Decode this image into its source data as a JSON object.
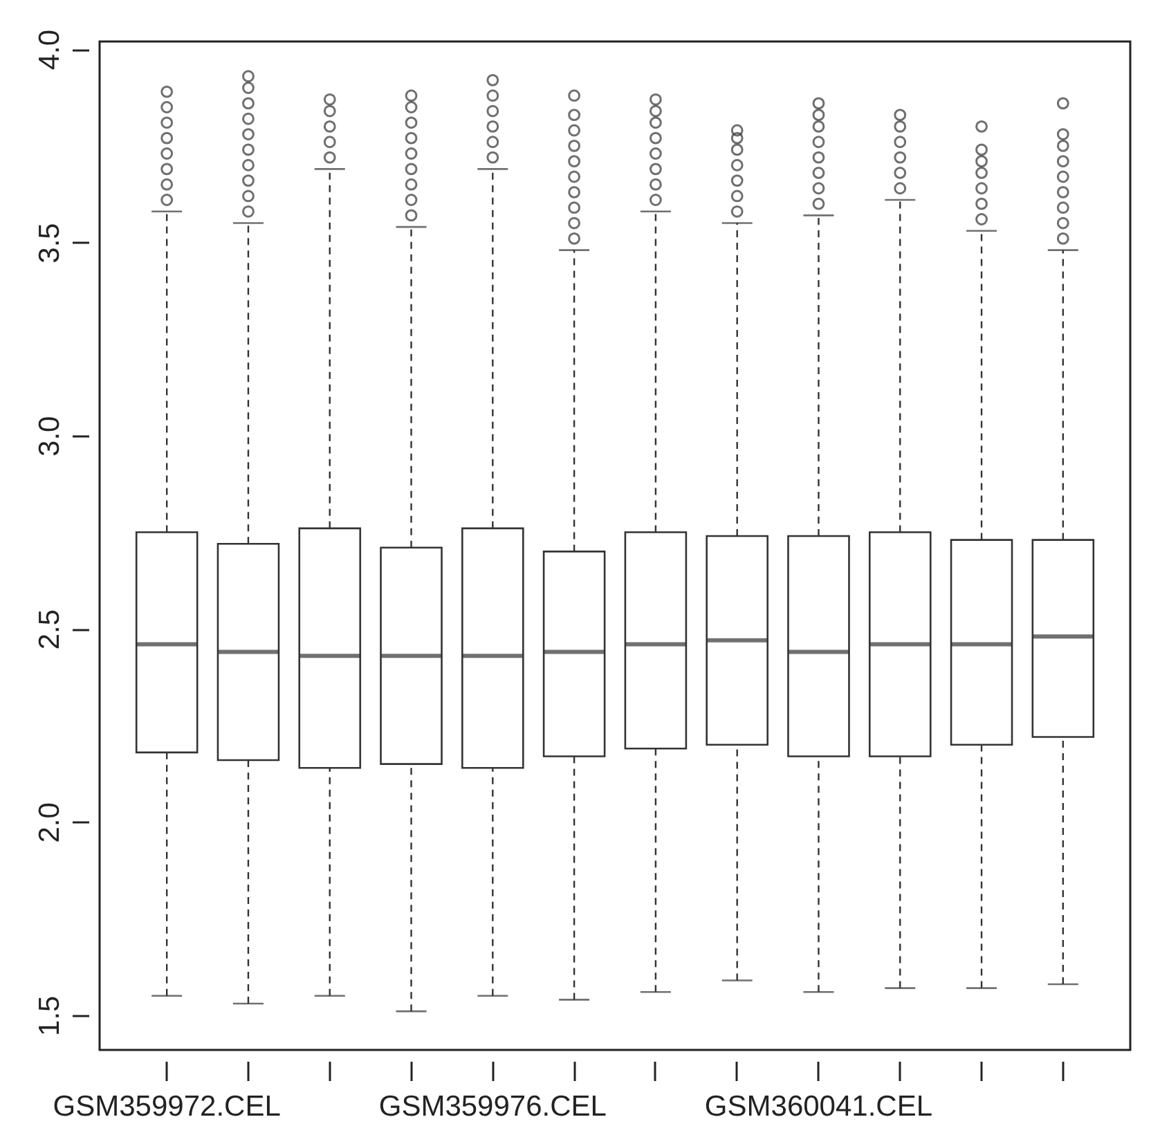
{
  "chart_data": {
    "type": "box",
    "categories": [
      "GSM359972.CEL",
      null,
      null,
      null,
      "GSM359976.CEL",
      null,
      null,
      null,
      "GSM360041.CEL",
      null,
      null,
      null
    ],
    "color": "#333333",
    "ylim": [
      1.41,
      4.02
    ],
    "yticks": [
      {
        "value": 1.5,
        "label": "1.5"
      },
      {
        "value": 2.0,
        "label": "2.0"
      },
      {
        "value": 2.5,
        "label": "2.5"
      },
      {
        "value": 3.0,
        "label": "3.0"
      },
      {
        "value": 3.5,
        "label": "3.5"
      },
      {
        "value": 4.0,
        "label": "4.0"
      }
    ],
    "boxes": [
      {
        "low": 1.55,
        "q1": 2.18,
        "median": 2.46,
        "q3": 2.75,
        "high": 3.58,
        "outliers": [
          3.61,
          3.65,
          3.69,
          3.73,
          3.77,
          3.81,
          3.85,
          3.89
        ]
      },
      {
        "low": 1.53,
        "q1": 2.16,
        "median": 2.44,
        "q3": 2.72,
        "high": 3.55,
        "outliers": [
          3.58,
          3.62,
          3.66,
          3.7,
          3.74,
          3.78,
          3.82,
          3.86,
          3.9,
          3.93
        ]
      },
      {
        "low": 1.55,
        "q1": 2.14,
        "median": 2.43,
        "q3": 2.76,
        "high": 3.69,
        "outliers": [
          3.72,
          3.76,
          3.8,
          3.84,
          3.87
        ]
      },
      {
        "low": 1.51,
        "q1": 2.15,
        "median": 2.43,
        "q3": 2.71,
        "high": 3.54,
        "outliers": [
          3.57,
          3.61,
          3.65,
          3.69,
          3.73,
          3.77,
          3.81,
          3.85,
          3.88
        ]
      },
      {
        "low": 1.55,
        "q1": 2.14,
        "median": 2.43,
        "q3": 2.76,
        "high": 3.69,
        "outliers": [
          3.72,
          3.76,
          3.8,
          3.84,
          3.88,
          3.92
        ]
      },
      {
        "low": 1.54,
        "q1": 2.17,
        "median": 2.44,
        "q3": 2.7,
        "high": 3.48,
        "outliers": [
          3.51,
          3.55,
          3.59,
          3.63,
          3.67,
          3.71,
          3.75,
          3.79,
          3.83,
          3.88
        ]
      },
      {
        "low": 1.56,
        "q1": 2.19,
        "median": 2.46,
        "q3": 2.75,
        "high": 3.58,
        "outliers": [
          3.61,
          3.65,
          3.69,
          3.73,
          3.77,
          3.81,
          3.84,
          3.87
        ]
      },
      {
        "low": 1.59,
        "q1": 2.2,
        "median": 2.47,
        "q3": 2.74,
        "high": 3.55,
        "outliers": [
          3.58,
          3.62,
          3.66,
          3.7,
          3.74,
          3.77,
          3.79
        ]
      },
      {
        "low": 1.56,
        "q1": 2.17,
        "median": 2.44,
        "q3": 2.74,
        "high": 3.57,
        "outliers": [
          3.6,
          3.64,
          3.68,
          3.72,
          3.76,
          3.8,
          3.83,
          3.86
        ]
      },
      {
        "low": 1.57,
        "q1": 2.17,
        "median": 2.46,
        "q3": 2.75,
        "high": 3.61,
        "outliers": [
          3.64,
          3.68,
          3.72,
          3.76,
          3.8,
          3.83
        ]
      },
      {
        "low": 1.57,
        "q1": 2.2,
        "median": 2.46,
        "q3": 2.73,
        "high": 3.53,
        "outliers": [
          3.56,
          3.6,
          3.64,
          3.68,
          3.71,
          3.74,
          3.8
        ]
      },
      {
        "low": 1.58,
        "q1": 2.22,
        "median": 2.48,
        "q3": 2.73,
        "high": 3.48,
        "outliers": [
          3.51,
          3.55,
          3.59,
          3.63,
          3.67,
          3.71,
          3.75,
          3.78,
          3.86
        ]
      }
    ]
  }
}
